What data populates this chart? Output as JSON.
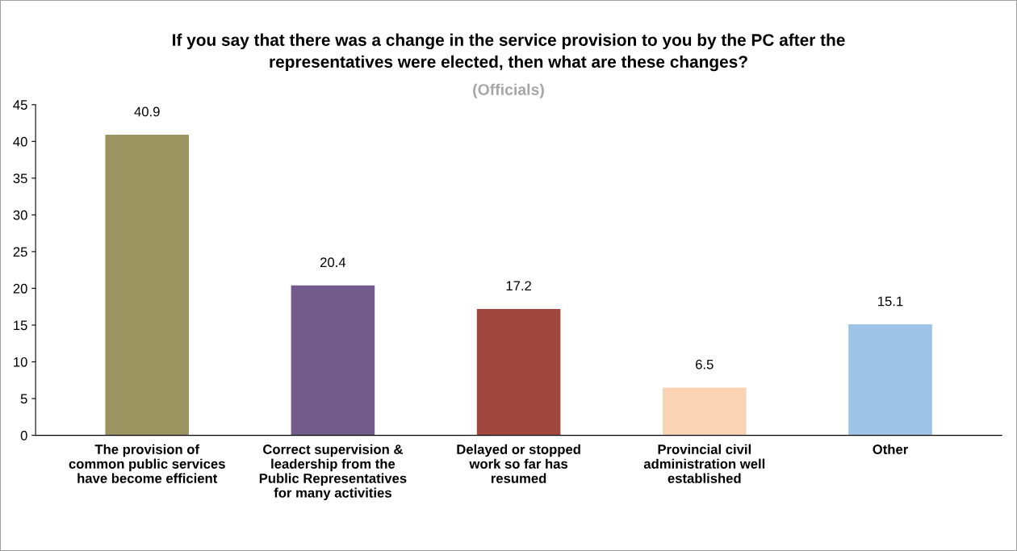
{
  "chart_data": {
    "type": "bar",
    "title": "If you say that there was a change in the service provision to you by the PC after the\nrepresentatives were elected, then what are these changes?",
    "subtitle": "(Officials)",
    "categories": [
      "The provision of\ncommon public services\nhave become efficient",
      "Correct supervision &\nleadership from the\nPublic Representatives\nfor many activities",
      "Delayed or stopped\nwork so far has\nresumed",
      "Provincial civil\nadministration well\nestablished",
      "Other"
    ],
    "values": [
      40.9,
      20.4,
      17.2,
      6.5,
      15.1
    ],
    "colors": [
      "#9b9460",
      "#735b8b",
      "#a0483f",
      "#f9d3b4",
      "#9dc3e6"
    ],
    "ylim": [
      0,
      45
    ],
    "yticks": [
      0,
      5,
      10,
      15,
      20,
      25,
      30,
      35,
      40,
      45
    ],
    "data_labels": true,
    "grid": false,
    "legend": false
  }
}
